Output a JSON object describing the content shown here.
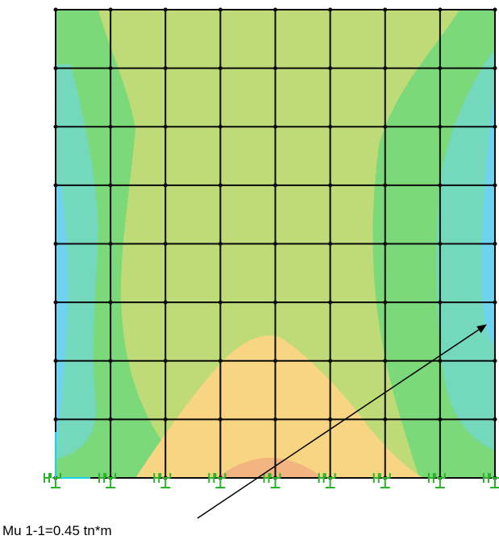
{
  "annotation": {
    "text": "Mu 1-1=0.45 tn*m"
  },
  "contour_colors": {
    "blue": "#6fd3f0",
    "teal": "#74d8bd",
    "green": "#7bd97a",
    "yellowgreen": "#bedb78",
    "orange": "#f8d582",
    "deep_orange": "#f2b480",
    "grid_line": "#0a0a0a",
    "support_green": "#2ab32a",
    "axis_cyan": "#19d3ee"
  },
  "mesh": {
    "columns": 8,
    "rows": 8
  },
  "supports": {
    "count": 9
  }
}
